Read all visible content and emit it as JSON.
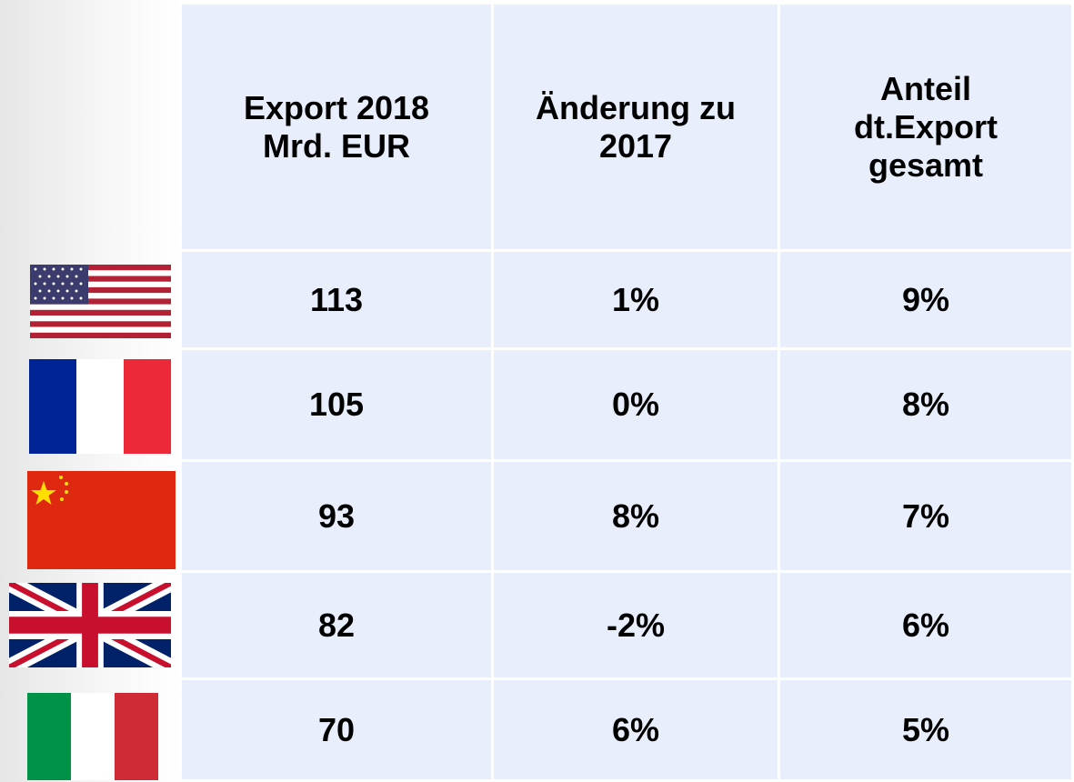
{
  "table": {
    "header": [
      [
        "Export 2018",
        "Mrd. EUR"
      ],
      [
        "Änderung zu",
        "2017"
      ],
      [
        "Anteil",
        "dt.Export",
        "gesamt"
      ]
    ],
    "rows": [
      [
        "113",
        "1%",
        "9%"
      ],
      [
        "105",
        "0%",
        "8%"
      ],
      [
        "93",
        "8%",
        "7%"
      ],
      [
        "82",
        "-2%",
        "6%"
      ],
      [
        "70",
        "6%",
        "5%"
      ]
    ]
  }
}
